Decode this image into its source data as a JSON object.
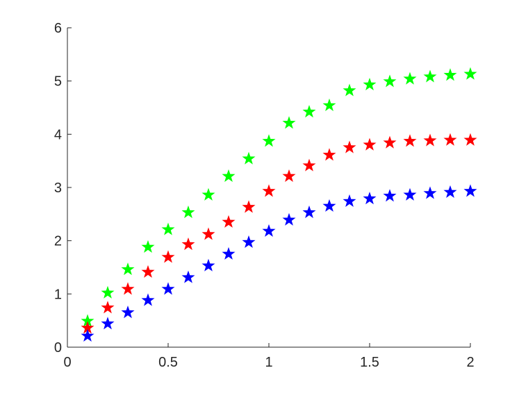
{
  "chart_data": {
    "type": "scatter",
    "marker": "star",
    "title": "",
    "xlabel": "",
    "ylabel": "",
    "xlim": [
      0,
      2
    ],
    "ylim": [
      0,
      6
    ],
    "xticks": [
      0,
      0.5,
      1,
      1.5,
      2
    ],
    "xtick_labels": [
      "0",
      "0.5",
      "1",
      "1.5",
      "2"
    ],
    "yticks": [
      0,
      1,
      2,
      3,
      4,
      5,
      6
    ],
    "ytick_labels": [
      "0",
      "1",
      "2",
      "3",
      "4",
      "5",
      "6"
    ],
    "grid": false,
    "legend": "none",
    "x": [
      0.1,
      0.2,
      0.3,
      0.4,
      0.5,
      0.6,
      0.7,
      0.8,
      0.9,
      1.0,
      1.1,
      1.2,
      1.3,
      1.4,
      1.5,
      1.6,
      1.7,
      1.8,
      1.9,
      2.0
    ],
    "series": [
      {
        "color": "#00ff00",
        "values": [
          0.49,
          1.02,
          1.46,
          1.88,
          2.21,
          2.53,
          2.86,
          3.21,
          3.54,
          3.87,
          4.21,
          4.42,
          4.54,
          4.82,
          4.93,
          4.99,
          5.04,
          5.08,
          5.11,
          5.13
        ]
      },
      {
        "color": "#ff0000",
        "values": [
          0.36,
          0.74,
          1.09,
          1.41,
          1.69,
          1.93,
          2.12,
          2.35,
          2.63,
          2.93,
          3.21,
          3.41,
          3.61,
          3.75,
          3.8,
          3.84,
          3.87,
          3.88,
          3.89,
          3.89
        ]
      },
      {
        "color": "#0000ff",
        "values": [
          0.21,
          0.44,
          0.65,
          0.88,
          1.09,
          1.31,
          1.53,
          1.75,
          1.97,
          2.18,
          2.39,
          2.53,
          2.65,
          2.74,
          2.79,
          2.84,
          2.86,
          2.89,
          2.91,
          2.93
        ]
      }
    ]
  }
}
